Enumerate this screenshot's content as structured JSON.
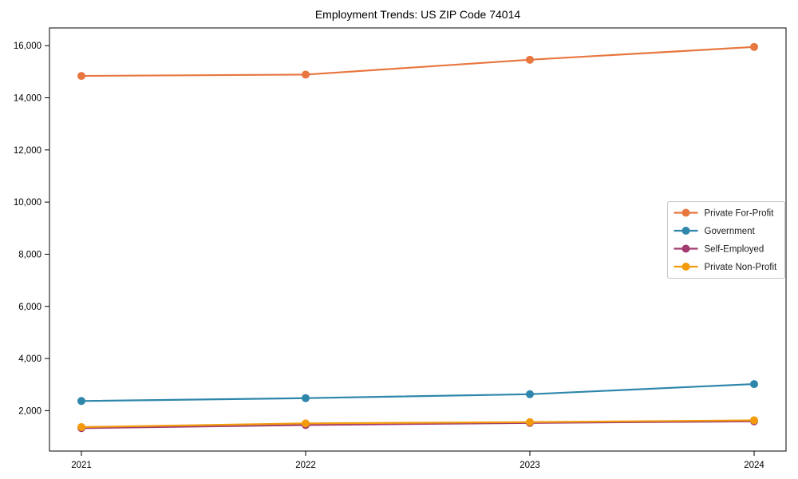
{
  "title": "Employment Trends: US ZIP Code 74014",
  "chart_data": {
    "type": "line",
    "title": "Employment Trends: US ZIP Code 74014",
    "x": [
      2021,
      2022,
      2023,
      2024
    ],
    "x_tick_labels": [
      "2021",
      "2022",
      "2023",
      "2024"
    ],
    "series": [
      {
        "name": "Private For-Profit",
        "color": "#e8763f",
        "values": [
          14840,
          14890,
          15460,
          15950
        ]
      },
      {
        "name": "Government",
        "color": "#2e86ab",
        "values": [
          2370,
          2480,
          2630,
          3020
        ]
      },
      {
        "name": "Self-Employed",
        "color": "#a23b72",
        "values": [
          1330,
          1450,
          1530,
          1590
        ]
      },
      {
        "name": "Private Non-Profit",
        "color": "#f29b0d",
        "values": [
          1370,
          1510,
          1560,
          1630
        ]
      }
    ],
    "y_ticks": [
      2000,
      4000,
      6000,
      8000,
      10000,
      12000,
      14000,
      16000
    ],
    "y_tick_labels": [
      "2,000",
      "4,000",
      "6,000",
      "8,000",
      "10,000",
      "12,000",
      "14,000",
      "16,000"
    ],
    "ylim": [
      450,
      16680
    ],
    "xlabel": "",
    "ylabel": "",
    "grid": false,
    "legend_position": "center right",
    "marker": "circle",
    "spine_color": "#000000",
    "legend_border_color": "#c8c8c8"
  }
}
